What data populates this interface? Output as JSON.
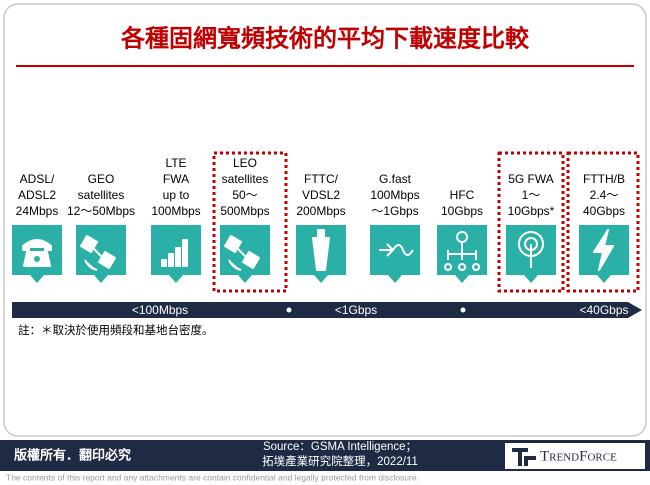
{
  "title": "各種固網寬頻技術的平均下載速度比較",
  "technologies": [
    {
      "lines": [
        "ADSL/",
        "ADSL2",
        "24Mbps"
      ]
    },
    {
      "lines": [
        "GEO",
        "satellites",
        "12～50Mbps"
      ]
    },
    {
      "lines": [
        "LTE",
        "FWA",
        "up to",
        "100Mbps"
      ]
    },
    {
      "lines": [
        "LEO",
        "satellites",
        "50～",
        "500Mbps"
      ]
    },
    {
      "lines": [
        "FTTC/",
        "VDSL2",
        "200Mbps"
      ]
    },
    {
      "lines": [
        "G.fast",
        "100Mbps",
        "～1Gbps"
      ]
    },
    {
      "lines": [
        "HFC",
        "10Gbps"
      ]
    },
    {
      "lines": [
        "5G FWA",
        "1～",
        "10Gbps*"
      ]
    },
    {
      "lines": [
        "FTTH/B",
        "2.4～",
        "40Gbps"
      ]
    }
  ],
  "scale": [
    "<100Mbps",
    "<1Gbps",
    "<40Gbps"
  ],
  "note": "註：＊取決於使用頻段和基地台密度。",
  "footer": {
    "rights": "版權所有．翻印必究",
    "source": [
      "Source：GSMA Intelligence；",
      "拓墣產業研究院整理，2022/11"
    ],
    "logo": "TrendForce",
    "disclaimer": "The contents of this report and any attachments are contain confidential and legally protected from disclosure."
  }
}
